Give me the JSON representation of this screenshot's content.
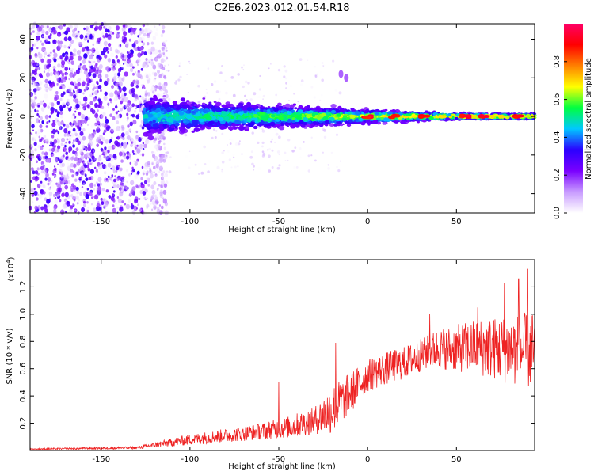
{
  "figure": {
    "title": "C2E6.2023.012.01.54.R18"
  },
  "chart_data": [
    {
      "type": "heatmap",
      "xlabel": "Height of straight line (km)",
      "ylabel": "Frequency (Hz)",
      "xlim": [
        -190,
        94
      ],
      "ylim": [
        -50,
        48
      ],
      "xticks": [
        -150,
        -100,
        -50,
        0,
        50
      ],
      "yticks": [
        -40,
        -20,
        0,
        20,
        40
      ],
      "colorbar": {
        "label": "Normalized spectral amplitude",
        "range": [
          0,
          1
        ],
        "ticks": [
          "0.0",
          "0.2",
          "0.4",
          "0.6",
          "0.8"
        ],
        "colors": [
          "#ffffff",
          "#c89bff",
          "#7a00ff",
          "#2b00ff",
          "#00c8ff",
          "#00ff40",
          "#ffff00",
          "#ff8000",
          "#ff0000",
          "#ff0066"
        ]
      },
      "description_values": {
        "noise_region_end_km": -125,
        "signal_center_hz": 0,
        "signal_halfwidth_hz_at_-100km": 10,
        "signal_halfwidth_hz_at_50km": 2,
        "peak_amplitude_x_km": [
          0,
          15,
          32,
          55,
          65,
          85
        ]
      },
      "grid": false
    },
    {
      "type": "line",
      "xlabel": "Height of straight line (km)",
      "ylabel": "SNR (10 * v/v)",
      "scale_label": "(x10",
      "scale_exponent": "4",
      "scale_suffix": ")",
      "xlim": [
        -190,
        94
      ],
      "ylim": [
        0,
        1.4
      ],
      "xticks": [
        -150,
        -100,
        -50,
        0,
        50
      ],
      "yticks": [
        "0.2",
        "0.4",
        "0.6",
        "0.8",
        "1.0",
        "1.2"
      ],
      "series": [
        {
          "color": "#ee2222",
          "trend": {
            "x": [
              -190,
              -130,
              -120,
              -100,
              -80,
              -60,
              -45,
              -30,
              -20,
              -10,
              0,
              10,
              20,
              30,
              40,
              50,
              60,
              70,
              80,
              94
            ],
            "y": [
              0.01,
              0.02,
              0.04,
              0.08,
              0.11,
              0.14,
              0.17,
              0.22,
              0.3,
              0.42,
              0.55,
              0.6,
              0.64,
              0.7,
              0.75,
              0.75,
              0.76,
              0.75,
              0.74,
              0.72
            ]
          },
          "noise_amplitude": {
            "x": [
              -190,
              -130,
              -100,
              -60,
              -30,
              -20,
              0,
              30,
              60,
              94
            ],
            "y": [
              0.005,
              0.01,
              0.04,
              0.06,
              0.1,
              0.18,
              0.12,
              0.12,
              0.2,
              0.3
            ]
          },
          "spikes": [
            {
              "x": -50,
              "y": 0.5
            },
            {
              "x": -18,
              "y": 0.79
            },
            {
              "x": 35,
              "y": 1.0
            },
            {
              "x": 62,
              "y": 1.05
            },
            {
              "x": 77,
              "y": 1.23
            },
            {
              "x": 85,
              "y": 1.26
            },
            {
              "x": 90,
              "y": 1.33
            }
          ]
        }
      ],
      "grid": false
    }
  ]
}
